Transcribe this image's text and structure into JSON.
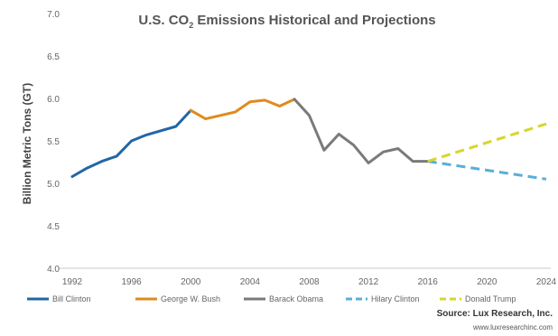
{
  "chart_data": {
    "type": "line",
    "title": {
      "prefix": "U.S. CO",
      "subscript": "2",
      "suffix": " Emissions Historical and Projections"
    },
    "ylabel": "Billion Metric Tons (GT)",
    "xlabel": "",
    "xlim": [
      1991,
      2025
    ],
    "ylim": [
      4.0,
      7.0
    ],
    "x_ticks": [
      "1992",
      "1996",
      "2000",
      "2004",
      "2008",
      "2012",
      "2016",
      "2020",
      "2024"
    ],
    "y_ticks": [
      "4.0",
      "4.5",
      "5.0",
      "5.5",
      "6.0",
      "6.5",
      "7.0"
    ],
    "grid": false,
    "legend_position": "bottom",
    "series": [
      {
        "name": "Bill Clinton",
        "color": "#2266a6",
        "style": "solid",
        "points": [
          [
            1992,
            5.08
          ],
          [
            1993,
            5.18
          ],
          [
            1994,
            5.26
          ],
          [
            1995,
            5.32
          ],
          [
            1996,
            5.5
          ],
          [
            1997,
            5.57
          ],
          [
            1998,
            5.62
          ],
          [
            1999,
            5.67
          ],
          [
            2000,
            5.86
          ]
        ]
      },
      {
        "name": "George W. Bush",
        "color": "#e08a1e",
        "style": "solid",
        "points": [
          [
            2000,
            5.86
          ],
          [
            2001,
            5.76
          ],
          [
            2002,
            5.8
          ],
          [
            2003,
            5.84
          ],
          [
            2004,
            5.96
          ],
          [
            2005,
            5.98
          ],
          [
            2006,
            5.91
          ],
          [
            2007,
            5.99
          ]
        ]
      },
      {
        "name": "Barack Obama",
        "color": "#7a7a7a",
        "style": "solid",
        "points": [
          [
            2007,
            5.99
          ],
          [
            2008,
            5.8
          ],
          [
            2009,
            5.39
          ],
          [
            2010,
            5.58
          ],
          [
            2011,
            5.45
          ],
          [
            2012,
            5.24
          ],
          [
            2013,
            5.37
          ],
          [
            2014,
            5.41
          ],
          [
            2015,
            5.26
          ],
          [
            2016,
            5.26
          ]
        ]
      },
      {
        "name": "Hilary Clinton",
        "color": "#5aaed8",
        "style": "dashed",
        "points": [
          [
            2016,
            5.26
          ],
          [
            2024,
            5.05
          ]
        ]
      },
      {
        "name": "Donald Trump",
        "color": "#d7d62a",
        "style": "dashed",
        "points": [
          [
            2016,
            5.26
          ],
          [
            2024,
            5.7
          ]
        ]
      }
    ]
  },
  "source": {
    "label": "Source: Lux Research, Inc.",
    "url": "www.luxresearchinc.com"
  }
}
